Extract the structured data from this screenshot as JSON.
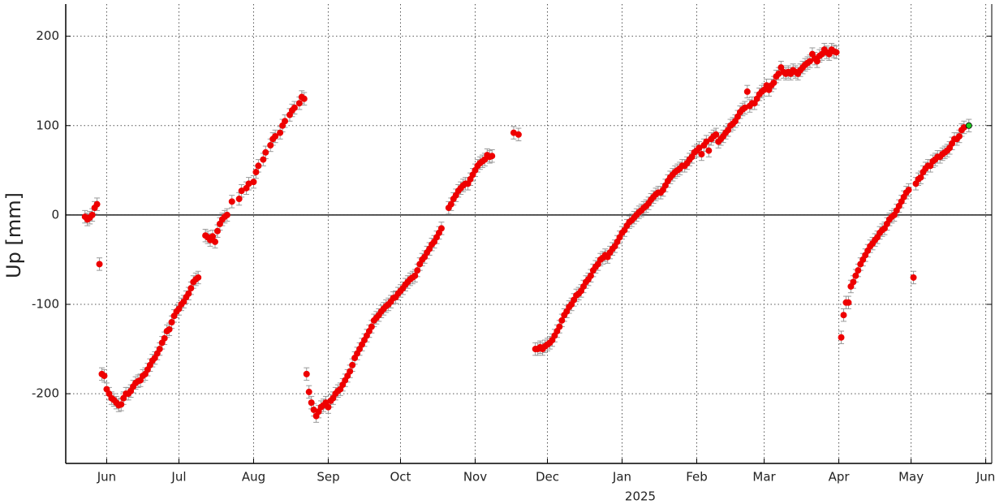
{
  "chart_data": {
    "type": "scatter",
    "ylabel": "Up [mm]",
    "xlabel": "2025",
    "xlim": [
      -231,
      153.5
    ],
    "ylim": [
      -278,
      236
    ],
    "xticks": [
      {
        "value": -214,
        "label": "Jun"
      },
      {
        "value": -184,
        "label": "Jul"
      },
      {
        "value": -153,
        "label": "Aug"
      },
      {
        "value": -122,
        "label": "Sep"
      },
      {
        "value": -92,
        "label": "Oct"
      },
      {
        "value": -61,
        "label": "Nov"
      },
      {
        "value": -31,
        "label": "Dec"
      },
      {
        "value": 0,
        "label": "Jan"
      },
      {
        "value": 31,
        "label": "Feb"
      },
      {
        "value": 59,
        "label": "Mar"
      },
      {
        "value": 90,
        "label": "Apr"
      },
      {
        "value": 120,
        "label": "May"
      },
      {
        "value": 151,
        "label": "Jun"
      }
    ],
    "yticks": [
      -200,
      -100,
      0,
      100,
      200
    ],
    "grid": true,
    "hline": 0,
    "yerr": 7,
    "series": [
      {
        "color": "#ee0000",
        "x": [
          -223,
          -222,
          -221,
          -220,
          -219,
          -218,
          -217
        ],
        "values": [
          -2,
          -5,
          -3,
          0,
          8,
          12,
          -55
        ]
      },
      {
        "color": "#ee0000",
        "x": [
          -216,
          -215,
          -214,
          -213,
          -212,
          -211,
          -210,
          -209,
          -208,
          -207,
          -206,
          -205,
          -204,
          -203,
          -202,
          -201,
          -200,
          -199,
          -198,
          -197,
          -196,
          -195,
          -194,
          -193,
          -192,
          -191,
          -190,
          -189,
          -188,
          -187,
          -186,
          -185,
          -184,
          -183,
          -182,
          -181,
          -180,
          -179,
          -178,
          -177,
          -176
        ],
        "values": [
          -178,
          -180,
          -195,
          -200,
          -205,
          -207,
          -210,
          -213,
          -212,
          -205,
          -200,
          -200,
          -197,
          -192,
          -188,
          -186,
          -185,
          -180,
          -178,
          -173,
          -168,
          -163,
          -160,
          -155,
          -150,
          -143,
          -138,
          -130,
          -128,
          -120,
          -113,
          -108,
          -105,
          -100,
          -97,
          -92,
          -88,
          -82,
          -75,
          -72,
          -70
        ]
      },
      {
        "color": "#ee0000",
        "x": [
          -173,
          -172,
          -171,
          -170,
          -169,
          -168,
          -167,
          -166,
          -165,
          -164,
          -162,
          -159,
          -158,
          -156,
          -155,
          -153,
          -152,
          -151,
          -149,
          -148,
          -146,
          -145,
          -144,
          -142,
          -141,
          -140,
          -138,
          -137,
          -136,
          -134,
          -133,
          -132
        ],
        "values": [
          -23,
          -25,
          -28,
          -24,
          -30,
          -18,
          -10,
          -5,
          -2,
          0,
          15,
          18,
          27,
          30,
          35,
          37,
          48,
          55,
          62,
          70,
          78,
          85,
          88,
          92,
          100,
          105,
          112,
          117,
          120,
          125,
          132,
          130
        ]
      },
      {
        "color": "#ee0000",
        "x": [
          -131,
          -130,
          -129,
          -128,
          -127,
          -126,
          -125,
          -124,
          -123,
          -122,
          -121,
          -120,
          -119,
          -118,
          -117,
          -116,
          -115,
          -114,
          -113,
          -112,
          -111,
          -110,
          -109,
          -108,
          -107,
          -106,
          -105,
          -104,
          -103,
          -102,
          -101,
          -100,
          -99,
          -98,
          -97,
          -96,
          -95,
          -94,
          -93,
          -92,
          -91,
          -90,
          -89,
          -88,
          -87,
          -86,
          -85,
          -84,
          -83,
          -82,
          -81,
          -80,
          -79,
          -78,
          -77,
          -76,
          -75
        ],
        "values": [
          -178,
          -198,
          -210,
          -218,
          -225,
          -220,
          -215,
          -213,
          -210,
          -215,
          -208,
          -205,
          -200,
          -197,
          -195,
          -190,
          -185,
          -180,
          -175,
          -168,
          -160,
          -155,
          -150,
          -145,
          -140,
          -135,
          -130,
          -125,
          -118,
          -115,
          -112,
          -108,
          -105,
          -102,
          -100,
          -97,
          -93,
          -92,
          -88,
          -85,
          -82,
          -78,
          -75,
          -72,
          -70,
          -68,
          -62,
          -55,
          -50,
          -47,
          -42,
          -38,
          -33,
          -30,
          -25,
          -20,
          -15
        ]
      },
      {
        "color": "#ee0000",
        "x": [
          -72,
          -71,
          -70,
          -69,
          -68,
          -67,
          -66,
          -65,
          -64,
          -63,
          -62,
          -61,
          -60,
          -59,
          -58,
          -57,
          -56,
          -55,
          -54
        ],
        "values": [
          8,
          12,
          18,
          22,
          27,
          30,
          33,
          35,
          35,
          40,
          45,
          50,
          55,
          58,
          60,
          62,
          67,
          65,
          66
        ]
      },
      {
        "color": "#ee0000",
        "x": [
          -45,
          -43
        ],
        "values": [
          92,
          90
        ]
      },
      {
        "color": "#ee0000",
        "x": [
          -36,
          -35,
          -34,
          -33,
          -32,
          -31,
          -30,
          -29,
          -28,
          -27,
          -26,
          -25,
          -24,
          -23,
          -22,
          -21,
          -20,
          -19,
          -18,
          -17,
          -16,
          -15,
          -14,
          -13,
          -12,
          -11,
          -10,
          -9,
          -8,
          -7,
          -6,
          -5,
          -4,
          -3,
          -2,
          -1,
          0,
          1,
          2,
          3,
          4,
          5,
          6,
          7,
          8,
          9,
          10,
          11,
          12,
          13,
          14,
          15,
          16,
          17,
          18,
          19,
          20,
          21,
          22,
          23,
          24,
          25,
          26,
          27,
          28,
          29,
          30,
          31,
          32,
          33,
          34,
          35,
          36,
          37,
          38,
          39,
          40,
          41,
          42,
          43,
          44,
          45,
          46,
          47,
          48,
          49,
          50,
          51,
          52,
          53,
          54,
          55,
          56,
          57,
          58,
          59,
          60,
          61,
          62,
          63,
          64,
          65,
          66,
          67,
          68,
          69,
          70,
          71,
          72,
          73,
          74,
          75,
          76,
          77,
          78,
          79,
          80,
          81,
          82,
          83,
          84,
          85,
          86,
          87,
          88,
          89
        ],
        "values": [
          -150,
          -150,
          -148,
          -150,
          -147,
          -145,
          -143,
          -140,
          -135,
          -130,
          -125,
          -118,
          -112,
          -108,
          -103,
          -100,
          -95,
          -90,
          -88,
          -85,
          -80,
          -75,
          -72,
          -68,
          -62,
          -58,
          -55,
          -50,
          -48,
          -45,
          -47,
          -42,
          -38,
          -35,
          -30,
          -25,
          -20,
          -17,
          -12,
          -8,
          -6,
          -3,
          0,
          3,
          5,
          8,
          10,
          13,
          17,
          20,
          23,
          25,
          25,
          28,
          33,
          38,
          42,
          45,
          48,
          50,
          52,
          55,
          55,
          58,
          62,
          65,
          70,
          72,
          75,
          68,
          78,
          82,
          72,
          85,
          88,
          90,
          82,
          85,
          88,
          92,
          95,
          100,
          102,
          105,
          110,
          115,
          118,
          120,
          138,
          122,
          125,
          125,
          130,
          135,
          138,
          140,
          145,
          140,
          145,
          148,
          155,
          158,
          165,
          160,
          158,
          160,
          158,
          162,
          160,
          158,
          162,
          165,
          168,
          170,
          172,
          180,
          175,
          172,
          178,
          180,
          185,
          182,
          180,
          185,
          183,
          182
        ]
      },
      {
        "color": "#ee0000",
        "x": [
          91,
          92,
          93,
          94,
          95,
          96,
          97,
          98,
          99,
          100,
          101,
          102,
          103,
          104,
          105,
          106,
          107,
          108,
          109,
          110,
          111,
          112,
          113,
          114,
          115,
          116,
          117,
          118,
          119,
          121,
          122,
          123,
          124,
          125,
          126,
          127,
          128,
          129,
          130,
          131,
          132,
          133,
          134,
          135,
          136,
          137,
          138,
          139,
          140,
          141,
          142
        ],
        "values": [
          -137,
          -112,
          -98,
          -98,
          -80,
          -75,
          -68,
          -62,
          -55,
          -50,
          -45,
          -40,
          -35,
          -32,
          -28,
          -25,
          -20,
          -17,
          -15,
          -10,
          -5,
          -2,
          0,
          5,
          10,
          15,
          20,
          25,
          28,
          -70,
          35,
          40,
          42,
          48,
          52,
          55,
          55,
          60,
          62,
          65,
          65,
          68,
          70,
          72,
          75,
          80,
          85,
          85,
          88,
          95,
          98
        ]
      },
      {
        "color": "#22cc22",
        "x": [
          144
        ],
        "values": [
          100
        ]
      }
    ]
  }
}
